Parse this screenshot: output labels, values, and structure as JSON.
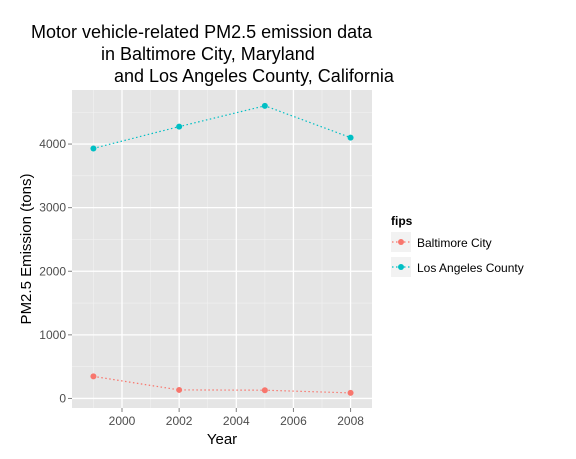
{
  "chart_data": {
    "type": "line",
    "title_lines": [
      "Motor vehicle-related PM2.5 emission data",
      "in Baltimore City, Maryland",
      "and Los Angeles County, California"
    ],
    "xlabel": "Year",
    "ylabel": "PM2.5 Emission (tons)",
    "x": [
      1999,
      2002,
      2005,
      2008
    ],
    "xlim": [
      1998.25,
      2008.75
    ],
    "ylim": [
      -150,
      4850
    ],
    "x_ticks": [
      2000,
      2002,
      2004,
      2006,
      2008
    ],
    "y_ticks": [
      0,
      1000,
      2000,
      3000,
      4000
    ],
    "grid": true,
    "legend": {
      "title": "fips",
      "position": "right"
    },
    "series": [
      {
        "name": "Baltimore City",
        "color": "#F8766D",
        "values": [
          347,
          134,
          130,
          88
        ]
      },
      {
        "name": "Los Angeles County",
        "color": "#00BFC4",
        "values": [
          3931,
          4274,
          4601,
          4101
        ]
      }
    ]
  }
}
